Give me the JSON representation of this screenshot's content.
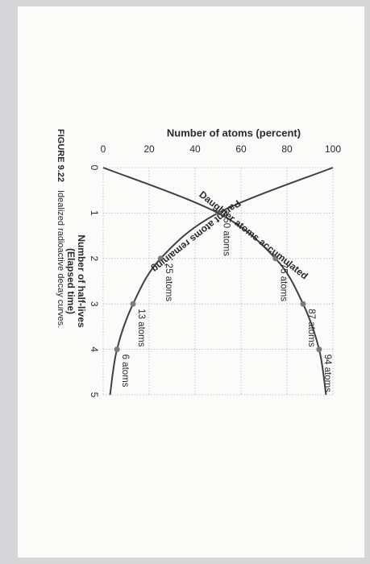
{
  "chart_data": {
    "type": "line",
    "figure_label": "FIGURE 9.22",
    "caption": "Idealized radioactive decay curves.",
    "y_label": "Number of atoms (percent)",
    "x_label": [
      "Number of half-lives",
      "(Elapsed time)"
    ],
    "x": [
      0,
      1,
      2,
      3,
      4,
      5
    ],
    "xlim": [
      0,
      5
    ],
    "xticks": [
      0,
      1,
      2,
      3,
      4,
      5
    ],
    "ylim": [
      0,
      100
    ],
    "yticks": [
      0,
      20,
      40,
      60,
      80,
      100
    ],
    "grid": true,
    "series": [
      {
        "name": "Parent atoms remaining",
        "color": "#3f3f46",
        "values": [
          100,
          50,
          25,
          13,
          6,
          3
        ],
        "value_labels": [
          null,
          "50 atoms",
          "25 atoms",
          "13 atoms",
          "6 atoms",
          null
        ]
      },
      {
        "name": "Daughter atoms accumulated",
        "color": "#3f3f46",
        "values": [
          0,
          50,
          75,
          87,
          94,
          97
        ],
        "value_labels": [
          null,
          null,
          "75 atoms",
          "87 atoms",
          "94 atoms",
          null
        ]
      }
    ]
  }
}
